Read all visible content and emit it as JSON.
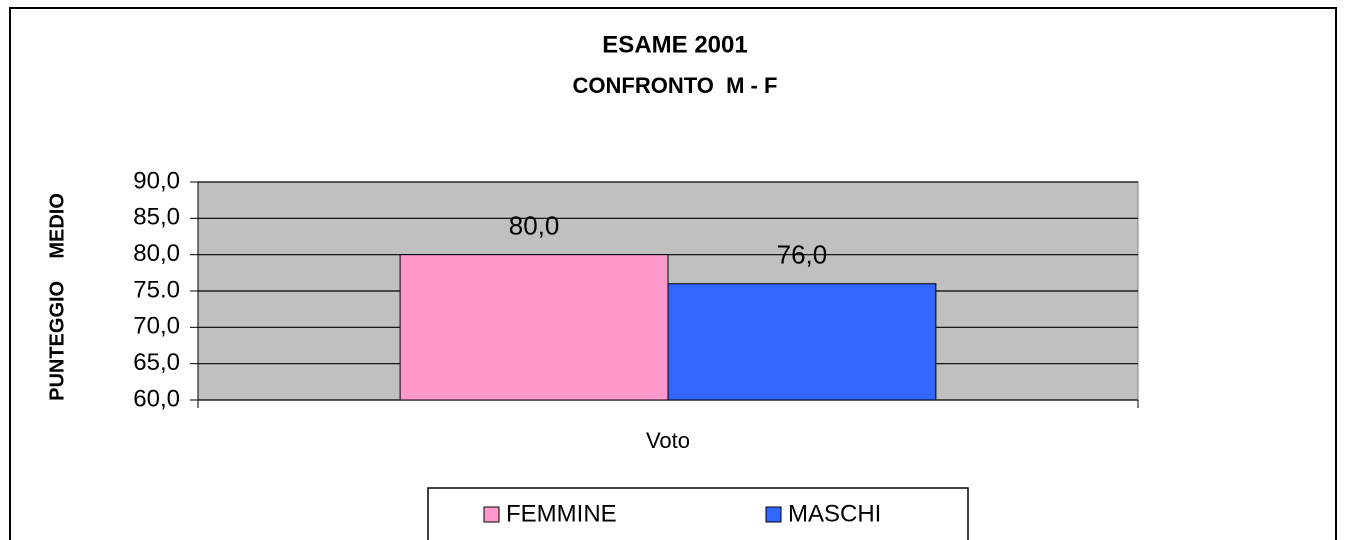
{
  "chart_data": {
    "type": "bar",
    "title": "ESAME 2001",
    "subtitle": "CONFRONTO  M - F",
    "y_label": "PUNTEGGIO    MEDIO",
    "categories": [
      "Voto"
    ],
    "series": [
      {
        "name": "FEMMINE",
        "color": "#ff99cc",
        "values": [
          80
        ],
        "value_labels": [
          "80,0"
        ]
      },
      {
        "name": "MASCHI",
        "color": "#3366ff",
        "values": [
          76
        ],
        "value_labels": [
          "76,0"
        ]
      }
    ],
    "ylim": [
      60,
      90
    ],
    "yticks": [
      {
        "value": 60,
        "label": "60,0"
      },
      {
        "value": 65,
        "label": "65,0"
      },
      {
        "value": 70,
        "label": "70,0"
      },
      {
        "value": 75,
        "label": "75.0"
      },
      {
        "value": 80,
        "label": "80,0"
      },
      {
        "value": 85,
        "label": "85,0"
      },
      {
        "value": 90,
        "label": "90,0"
      }
    ],
    "grid": true,
    "legend": "bottom",
    "plot_background": "#c0c0c0"
  }
}
